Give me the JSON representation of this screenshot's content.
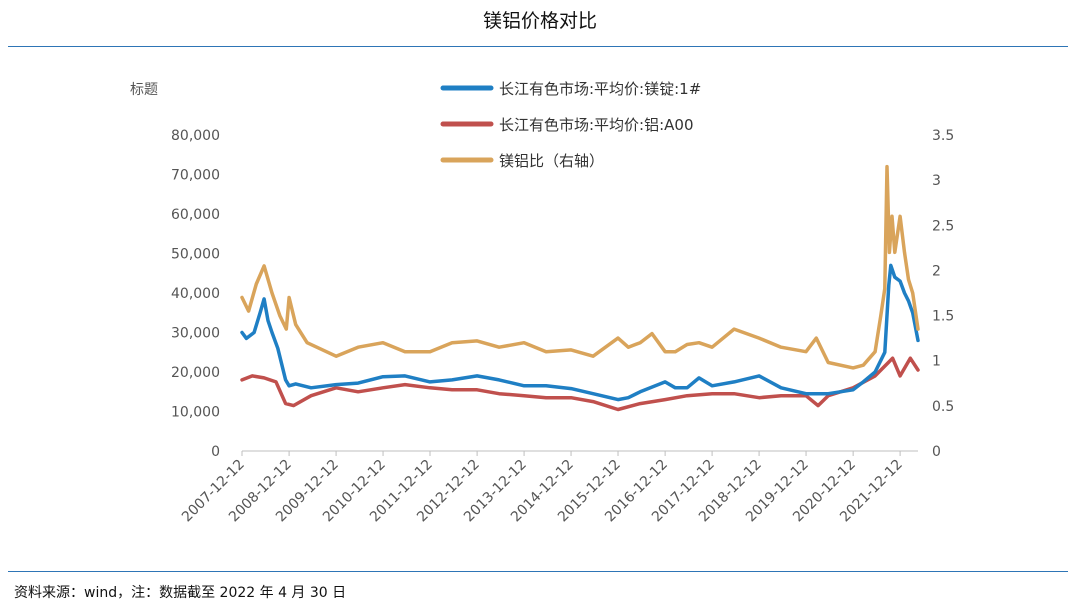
{
  "header": {
    "title": "镁铝价格对比"
  },
  "footer": {
    "source": "资料来源：wind，注：数据截至 2022 年 4 月 30 日"
  },
  "chart_data": {
    "type": "line",
    "axis_title_left": "标题",
    "y_left": {
      "min": 0,
      "max": 80000,
      "ticks": [
        "0",
        "10,000",
        "20,000",
        "30,000",
        "40,000",
        "50,000",
        "60,000",
        "70,000",
        "80,000"
      ]
    },
    "y_right": {
      "min": 0,
      "max": 3.5,
      "ticks": [
        "0",
        "0.5",
        "1",
        "1.5",
        "2",
        "2.5",
        "3",
        "3.5"
      ]
    },
    "x_ticks": [
      "2007-12-12",
      "2008-12-12",
      "2009-12-12",
      "2010-12-12",
      "2011-12-12",
      "2012-12-12",
      "2013-12-12",
      "2014-12-12",
      "2015-12-12",
      "2016-12-12",
      "2017-12-12",
      "2018-12-12",
      "2019-12-12",
      "2020-12-12",
      "2021-12-12"
    ],
    "x_range": [
      "2007-12-12",
      "2022-04-30"
    ],
    "grid": false,
    "legend_position": "top-center",
    "series": [
      {
        "name": "长江有色市场:平均价:镁锭:1#",
        "axis": "left",
        "color": "#1f7fc4",
        "points": [
          [
            "2007-12-12",
            30000
          ],
          [
            "2008-01-15",
            28500
          ],
          [
            "2008-03-15",
            30000
          ],
          [
            "2008-05-01",
            35000
          ],
          [
            "2008-06-01",
            38500
          ],
          [
            "2008-07-01",
            33000
          ],
          [
            "2008-08-01",
            30000
          ],
          [
            "2008-09-15",
            26000
          ],
          [
            "2008-11-15",
            18000
          ],
          [
            "2008-12-12",
            16500
          ],
          [
            "2009-02-01",
            17000
          ],
          [
            "2009-06-01",
            16000
          ],
          [
            "2009-12-12",
            16800
          ],
          [
            "2010-06-01",
            17200
          ],
          [
            "2010-12-12",
            18800
          ],
          [
            "2011-06-01",
            19000
          ],
          [
            "2011-12-12",
            17500
          ],
          [
            "2012-06-01",
            18000
          ],
          [
            "2012-12-12",
            19000
          ],
          [
            "2013-06-01",
            18000
          ],
          [
            "2013-12-12",
            16500
          ],
          [
            "2014-06-01",
            16500
          ],
          [
            "2014-12-12",
            15800
          ],
          [
            "2015-06-01",
            14500
          ],
          [
            "2015-12-12",
            13000
          ],
          [
            "2016-03-01",
            13500
          ],
          [
            "2016-06-01",
            15000
          ],
          [
            "2016-12-12",
            17500
          ],
          [
            "2017-03-01",
            16000
          ],
          [
            "2017-06-01",
            16000
          ],
          [
            "2017-09-01",
            18500
          ],
          [
            "2017-12-12",
            16500
          ],
          [
            "2018-06-01",
            17500
          ],
          [
            "2018-12-12",
            19000
          ],
          [
            "2019-06-01",
            16000
          ],
          [
            "2019-12-12",
            14500
          ],
          [
            "2020-06-01",
            14500
          ],
          [
            "2020-12-12",
            15500
          ],
          [
            "2021-03-01",
            17500
          ],
          [
            "2021-06-01",
            20000
          ],
          [
            "2021-08-15",
            25000
          ],
          [
            "2021-09-15",
            42000
          ],
          [
            "2021-10-01",
            47000
          ],
          [
            "2021-11-01",
            44000
          ],
          [
            "2021-12-12",
            43000
          ],
          [
            "2022-01-15",
            40000
          ],
          [
            "2022-02-15",
            38000
          ],
          [
            "2022-03-20",
            35000
          ],
          [
            "2022-04-30",
            28000
          ]
        ]
      },
      {
        "name": "长江有色市场:平均价:铝:A00",
        "axis": "left",
        "color": "#c0504d",
        "points": [
          [
            "2007-12-12",
            18000
          ],
          [
            "2008-03-01",
            19000
          ],
          [
            "2008-06-01",
            18500
          ],
          [
            "2008-09-01",
            17500
          ],
          [
            "2008-11-15",
            12000
          ],
          [
            "2009-01-15",
            11500
          ],
          [
            "2009-06-01",
            14000
          ],
          [
            "2009-12-12",
            16000
          ],
          [
            "2010-06-01",
            15000
          ],
          [
            "2010-12-12",
            16000
          ],
          [
            "2011-06-01",
            16800
          ],
          [
            "2011-12-12",
            16000
          ],
          [
            "2012-06-01",
            15500
          ],
          [
            "2012-12-12",
            15500
          ],
          [
            "2013-06-01",
            14500
          ],
          [
            "2013-12-12",
            14000
          ],
          [
            "2014-06-01",
            13500
          ],
          [
            "2014-12-12",
            13500
          ],
          [
            "2015-06-01",
            12500
          ],
          [
            "2015-12-12",
            10500
          ],
          [
            "2016-06-01",
            12000
          ],
          [
            "2016-12-12",
            13000
          ],
          [
            "2017-06-01",
            14000
          ],
          [
            "2017-12-12",
            14500
          ],
          [
            "2018-06-01",
            14500
          ],
          [
            "2018-12-12",
            13500
          ],
          [
            "2019-06-01",
            14000
          ],
          [
            "2019-12-12",
            14000
          ],
          [
            "2020-03-15",
            11500
          ],
          [
            "2020-06-01",
            14000
          ],
          [
            "2020-12-12",
            16000
          ],
          [
            "2021-06-01",
            19000
          ],
          [
            "2021-10-15",
            23500
          ],
          [
            "2021-12-12",
            19000
          ],
          [
            "2022-03-01",
            23500
          ],
          [
            "2022-04-30",
            20500
          ]
        ]
      },
      {
        "name": "镁铝比（右轴）",
        "axis": "right",
        "color": "#d9a45b",
        "points": [
          [
            "2007-12-12",
            1.7
          ],
          [
            "2008-02-01",
            1.55
          ],
          [
            "2008-04-01",
            1.85
          ],
          [
            "2008-06-01",
            2.05
          ],
          [
            "2008-08-01",
            1.75
          ],
          [
            "2008-10-01",
            1.5
          ],
          [
            "2008-11-20",
            1.35
          ],
          [
            "2008-12-12",
            1.7
          ],
          [
            "2009-02-01",
            1.4
          ],
          [
            "2009-05-01",
            1.2
          ],
          [
            "2009-12-12",
            1.05
          ],
          [
            "2010-06-01",
            1.15
          ],
          [
            "2010-12-12",
            1.2
          ],
          [
            "2011-06-01",
            1.1
          ],
          [
            "2011-12-12",
            1.1
          ],
          [
            "2012-06-01",
            1.2
          ],
          [
            "2012-12-12",
            1.22
          ],
          [
            "2013-06-01",
            1.15
          ],
          [
            "2013-12-12",
            1.2
          ],
          [
            "2014-06-01",
            1.1
          ],
          [
            "2014-12-12",
            1.12
          ],
          [
            "2015-06-01",
            1.05
          ],
          [
            "2015-12-12",
            1.25
          ],
          [
            "2016-03-01",
            1.15
          ],
          [
            "2016-06-01",
            1.2
          ],
          [
            "2016-09-01",
            1.3
          ],
          [
            "2016-12-12",
            1.1
          ],
          [
            "2017-03-01",
            1.1
          ],
          [
            "2017-06-01",
            1.18
          ],
          [
            "2017-09-01",
            1.2
          ],
          [
            "2017-12-12",
            1.15
          ],
          [
            "2018-06-01",
            1.35
          ],
          [
            "2018-12-12",
            1.25
          ],
          [
            "2019-06-01",
            1.15
          ],
          [
            "2019-12-12",
            1.1
          ],
          [
            "2020-03-01",
            1.25
          ],
          [
            "2020-06-01",
            0.98
          ],
          [
            "2020-12-12",
            0.92
          ],
          [
            "2021-03-01",
            0.95
          ],
          [
            "2021-06-01",
            1.1
          ],
          [
            "2021-07-15",
            1.5
          ],
          [
            "2021-08-15",
            1.8
          ],
          [
            "2021-09-01",
            3.15
          ],
          [
            "2021-09-20",
            2.2
          ],
          [
            "2021-10-10",
            2.6
          ],
          [
            "2021-11-01",
            2.2
          ],
          [
            "2021-12-12",
            2.6
          ],
          [
            "2022-01-15",
            2.2
          ],
          [
            "2022-02-15",
            1.9
          ],
          [
            "2022-03-20",
            1.75
          ],
          [
            "2022-04-30",
            1.35
          ]
        ]
      }
    ]
  }
}
